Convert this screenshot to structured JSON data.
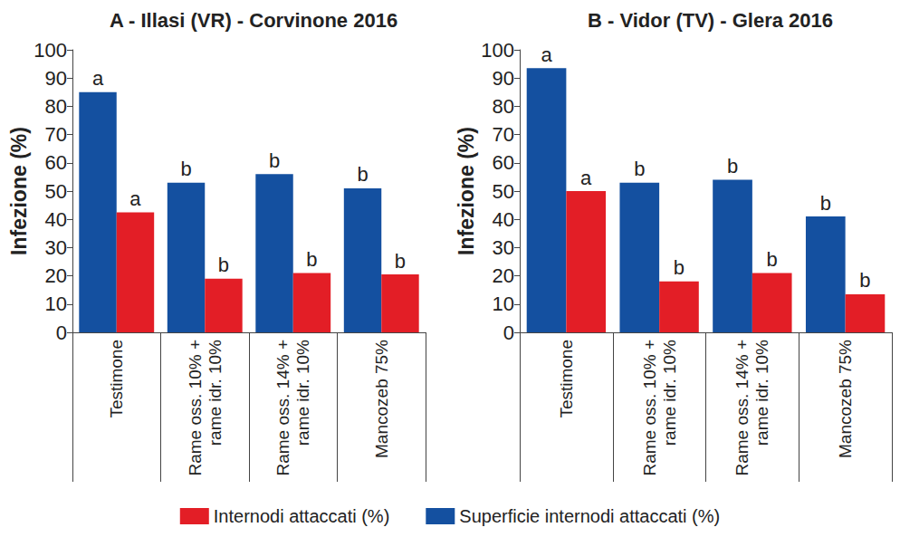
{
  "chart_data": [
    {
      "type": "bar",
      "title": "A - Illasi (VR) - Corvinone 2016",
      "ylabel": "Infezione (%)",
      "categories": [
        "Testimone",
        "Rame oss. 10% +\nrame idr. 10%",
        "Rame oss. 14% +\nrame idr. 10%",
        "Mancozeb 75%"
      ],
      "series": [
        {
          "name": "Superficie internodi attaccati (%)",
          "color": "#1450a0",
          "values": [
            85,
            53,
            56,
            51
          ],
          "annotations": [
            "a",
            "b",
            "b",
            "b"
          ]
        },
        {
          "name": "Internodi attaccati (%)",
          "color": "#e31e26",
          "values": [
            42.5,
            19,
            21,
            20.5
          ],
          "annotations": [
            "a",
            "b",
            "b",
            "b"
          ]
        }
      ],
      "ylim": [
        0,
        100
      ],
      "yticks": [
        0,
        10,
        20,
        30,
        40,
        50,
        60,
        70,
        80,
        90,
        100
      ],
      "grid": false,
      "legend": "bottom"
    },
    {
      "type": "bar",
      "title": "B - Vidor (TV) - Glera 2016",
      "ylabel": "Infezione (%)",
      "categories": [
        "Testimone",
        "Rame oss. 10% +\nrame idr. 10%",
        "Rame oss. 14% +\nrame idr. 10%",
        "Mancozeb 75%"
      ],
      "series": [
        {
          "name": "Superficie internodi attaccati (%)",
          "color": "#1450a0",
          "values": [
            93.5,
            53,
            54,
            41
          ],
          "annotations": [
            "a",
            "b",
            "b",
            "b"
          ]
        },
        {
          "name": "Internodi attaccati (%)",
          "color": "#e31e26",
          "values": [
            50,
            18,
            21,
            13.5
          ],
          "annotations": [
            "a",
            "b",
            "b",
            "b"
          ]
        }
      ],
      "ylim": [
        0,
        100
      ],
      "yticks": [
        0,
        10,
        20,
        30,
        40,
        50,
        60,
        70,
        80,
        90,
        100
      ],
      "grid": false,
      "legend": "bottom"
    }
  ]
}
